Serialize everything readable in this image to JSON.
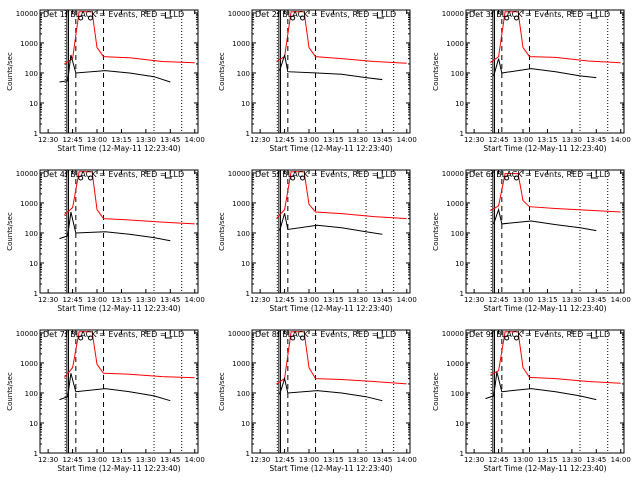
{
  "figure": {
    "layout": "3x3 grid",
    "background": "#ffffff",
    "event_color": "#000000",
    "lld_color": "#ff0000"
  },
  "axes_common": {
    "ylabel": "Counts/sec",
    "xlabel": "Start Time (12-May-11 12:23:40)",
    "y_scale": "log",
    "ylim": [
      1,
      10000
    ],
    "y_ticks": [
      "1",
      "10",
      "100",
      "1000",
      "10000"
    ],
    "x_ticks": [
      "12:30",
      "12:45",
      "13:00",
      "13:15",
      "13:30",
      "13:45",
      "14:00"
    ]
  },
  "chart_data": [
    {
      "type": "line",
      "title": "Det 1f BLACK = Events, RED = LLD",
      "series": [
        {
          "values": [
            [
              "12:40",
              200
            ],
            [
              "12:45",
              300
            ],
            [
              "12:49",
              11000
            ],
            [
              "12:57",
              11000
            ],
            [
              "13:00",
              700
            ],
            [
              "13:04",
              350
            ],
            [
              "13:20",
              320
            ],
            [
              "13:40",
              240
            ],
            [
              "14:00",
              220
            ]
          ]
        },
        {
          "values": [
            [
              "12:37",
              50
            ],
            [
              "12:42",
              55
            ],
            [
              "12:44",
              400
            ],
            [
              "12:47",
              100
            ],
            [
              "13:05",
              120
            ],
            [
              "13:20",
              100
            ],
            [
              "13:35",
              75
            ],
            [
              "13:45",
              50
            ]
          ]
        }
      ]
    },
    {
      "type": "line",
      "title": "Det 2f BLACK = Events, RED = LLD",
      "series": [
        {
          "values": [
            [
              "12:40",
              240
            ],
            [
              "12:45",
              350
            ],
            [
              "12:49",
              11000
            ],
            [
              "12:57",
              11000
            ],
            [
              "13:00",
              700
            ],
            [
              "13:04",
              350
            ],
            [
              "13:20",
              300
            ],
            [
              "13:40",
              240
            ],
            [
              "14:00",
              210
            ]
          ]
        },
        {
          "values": [
            [
              "12:42",
              120
            ],
            [
              "12:45",
              400
            ],
            [
              "12:47",
              110
            ],
            [
              "13:05",
              100
            ],
            [
              "13:20",
              90
            ],
            [
              "13:35",
              70
            ],
            [
              "13:45",
              60
            ]
          ]
        }
      ]
    },
    {
      "type": "line",
      "title": "Det 3f BLACK = Events, RED = LLD",
      "series": [
        {
          "values": [
            [
              "12:40",
              220
            ],
            [
              "12:45",
              350
            ],
            [
              "12:49",
              11000
            ],
            [
              "12:57",
              11000
            ],
            [
              "13:00",
              700
            ],
            [
              "13:04",
              350
            ],
            [
              "13:20",
              330
            ],
            [
              "13:40",
              250
            ],
            [
              "14:00",
              220
            ]
          ]
        },
        {
          "values": [
            [
              "12:42",
              80
            ],
            [
              "12:45",
              300
            ],
            [
              "12:47",
              100
            ],
            [
              "13:05",
              140
            ],
            [
              "13:20",
              110
            ],
            [
              "13:35",
              80
            ],
            [
              "13:45",
              70
            ]
          ]
        }
      ]
    },
    {
      "type": "line",
      "title": "Det 4f BLACK = Events, RED = LLD",
      "series": [
        {
          "values": [
            [
              "12:40",
              400
            ],
            [
              "12:45",
              700
            ],
            [
              "12:49",
              11000
            ],
            [
              "12:57",
              11000
            ],
            [
              "13:00",
              600
            ],
            [
              "13:04",
              300
            ],
            [
              "13:20",
              270
            ],
            [
              "13:40",
              230
            ],
            [
              "14:00",
              200
            ]
          ]
        },
        {
          "values": [
            [
              "12:37",
              65
            ],
            [
              "12:42",
              80
            ],
            [
              "12:44",
              500
            ],
            [
              "12:47",
              100
            ],
            [
              "13:05",
              110
            ],
            [
              "13:20",
              90
            ],
            [
              "13:35",
              70
            ],
            [
              "13:45",
              55
            ]
          ]
        }
      ]
    },
    {
      "type": "line",
      "title": "Det 5f BLACK = Events, RED = LLD",
      "series": [
        {
          "values": [
            [
              "12:40",
              300
            ],
            [
              "12:45",
              600
            ],
            [
              "12:49",
              11000
            ],
            [
              "12:57",
              11000
            ],
            [
              "13:00",
              900
            ],
            [
              "13:04",
              500
            ],
            [
              "13:20",
              440
            ],
            [
              "13:40",
              350
            ],
            [
              "14:00",
              300
            ]
          ]
        },
        {
          "values": [
            [
              "12:42",
              120
            ],
            [
              "12:45",
              450
            ],
            [
              "12:47",
              130
            ],
            [
              "13:05",
              180
            ],
            [
              "13:20",
              150
            ],
            [
              "13:35",
              110
            ],
            [
              "13:45",
              90
            ]
          ]
        }
      ]
    },
    {
      "type": "line",
      "title": "Det 6f BLACK = Events, RED = LLD",
      "series": [
        {
          "values": [
            [
              "12:40",
              550
            ],
            [
              "12:45",
              800
            ],
            [
              "12:49",
              9500
            ],
            [
              "12:57",
              9500
            ],
            [
              "13:00",
              1200
            ],
            [
              "13:04",
              750
            ],
            [
              "13:20",
              650
            ],
            [
              "13:40",
              570
            ],
            [
              "14:00",
              500
            ]
          ]
        },
        {
          "values": [
            [
              "12:42",
              200
            ],
            [
              "12:45",
              600
            ],
            [
              "12:47",
              200
            ],
            [
              "13:05",
              250
            ],
            [
              "13:20",
              190
            ],
            [
              "13:35",
              150
            ],
            [
              "13:45",
              120
            ]
          ]
        }
      ]
    },
    {
      "type": "line",
      "title": "Det 7f BLACK = Events, RED = LLD",
      "series": [
        {
          "values": [
            [
              "12:40",
              330
            ],
            [
              "12:45",
              700
            ],
            [
              "12:49",
              11000
            ],
            [
              "12:57",
              11000
            ],
            [
              "13:00",
              900
            ],
            [
              "13:04",
              450
            ],
            [
              "13:20",
              420
            ],
            [
              "13:40",
              350
            ],
            [
              "14:00",
              320
            ]
          ]
        },
        {
          "values": [
            [
              "12:37",
              60
            ],
            [
              "12:42",
              75
            ],
            [
              "12:44",
              450
            ],
            [
              "12:47",
              110
            ],
            [
              "13:05",
              140
            ],
            [
              "13:20",
              110
            ],
            [
              "13:35",
              80
            ],
            [
              "13:45",
              55
            ]
          ]
        }
      ]
    },
    {
      "type": "line",
      "title": "Det 8f BLACK = Events, RED = LLD",
      "series": [
        {
          "values": [
            [
              "12:40",
              200
            ],
            [
              "12:45",
              300
            ],
            [
              "12:49",
              11000
            ],
            [
              "12:57",
              11000
            ],
            [
              "13:00",
              700
            ],
            [
              "13:04",
              300
            ],
            [
              "13:20",
              280
            ],
            [
              "13:40",
              240
            ],
            [
              "14:00",
              200
            ]
          ]
        },
        {
          "values": [
            [
              "12:42",
              90
            ],
            [
              "12:45",
              300
            ],
            [
              "12:47",
              100
            ],
            [
              "13:05",
              120
            ],
            [
              "13:20",
              100
            ],
            [
              "13:35",
              75
            ],
            [
              "13:45",
              55
            ]
          ]
        }
      ]
    },
    {
      "type": "line",
      "title": "Det 9f BLACK = Events, RED = LLD",
      "series": [
        {
          "values": [
            [
              "12:40",
              400
            ],
            [
              "12:45",
              550
            ],
            [
              "12:49",
              11000
            ],
            [
              "12:57",
              11000
            ],
            [
              "13:00",
              700
            ],
            [
              "13:04",
              330
            ],
            [
              "13:20",
              300
            ],
            [
              "13:40",
              240
            ],
            [
              "14:00",
              210
            ]
          ]
        },
        {
          "values": [
            [
              "12:37",
              65
            ],
            [
              "12:42",
              80
            ],
            [
              "12:44",
              500
            ],
            [
              "12:47",
              110
            ],
            [
              "13:05",
              140
            ],
            [
              "13:20",
              110
            ],
            [
              "13:35",
              80
            ],
            [
              "13:45",
              60
            ]
          ]
        }
      ]
    }
  ]
}
